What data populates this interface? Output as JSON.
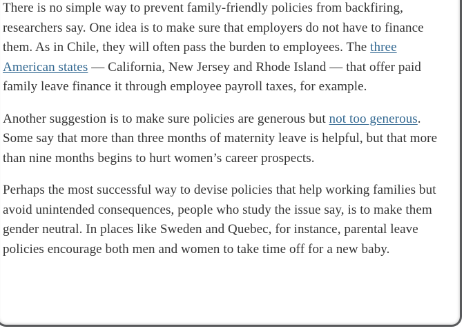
{
  "article": {
    "paragraphs": [
      {
        "segments": [
          {
            "text": "There is no simple way to prevent family-friendly policies from backfiring, researchers say. One idea is to make sure that employers do not have to finance them. As in Chile, they will often pass the burden to employees. The "
          },
          {
            "text": "three American states",
            "type": "link"
          },
          {
            "text": " — California, New Jersey and Rhode Island — that offer paid family leave finance it through employee payroll taxes, for example."
          }
        ]
      },
      {
        "segments": [
          {
            "text": "Another suggestion is to make sure policies are generous but "
          },
          {
            "text": "not too generous",
            "type": "link"
          },
          {
            "text": ". Some say that more than three months of maternity leave is helpful, but that more than nine months begins to hurt women’s career prospects."
          }
        ]
      },
      {
        "segments": [
          {
            "text": "Perhaps the most successful way to devise policies that help working families but avoid unintended consequences, people who study the issue say, is to make them gender neutral. In places like Sweden and Quebec, for instance, parental leave policies encourage both men and women to take time off for a new baby."
          }
        ]
      }
    ]
  },
  "colors": {
    "text": "#333333",
    "link": "#326891",
    "frame_border": "#58595b",
    "background": "#ffffff"
  }
}
